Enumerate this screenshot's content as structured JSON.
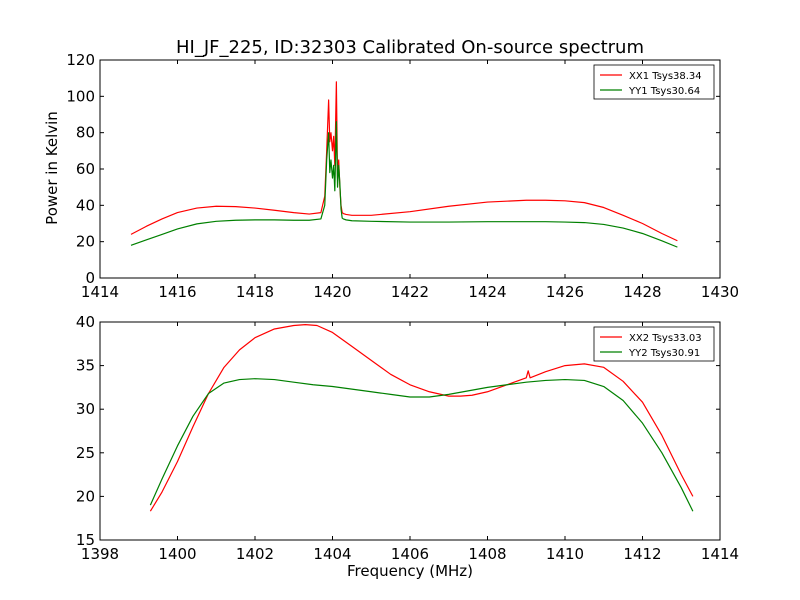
{
  "figure": {
    "title": "HI_JF_225, ID:32303 Calibrated On-source spectrum",
    "ylabel": "Power in Kelvin",
    "xlabel": "Frequency (MHz)"
  },
  "chart_data": [
    {
      "type": "line",
      "title": "HI_JF_225, ID:32303 Calibrated On-source spectrum",
      "xlabel": "",
      "ylabel": "Power in Kelvin",
      "xlim": [
        1414,
        1430
      ],
      "ylim": [
        0,
        120
      ],
      "xticks": [
        1414,
        1416,
        1418,
        1420,
        1422,
        1424,
        1426,
        1428,
        1430
      ],
      "yticks": [
        0,
        20,
        40,
        60,
        80,
        100,
        120
      ],
      "grid": false,
      "legend": "top-right",
      "series": [
        {
          "name": "XX1 Tsys38.34",
          "color": "#ff0000",
          "x": [
            1414.8,
            1415.2,
            1415.6,
            1416.0,
            1416.5,
            1417.0,
            1417.5,
            1418.0,
            1418.5,
            1419.0,
            1419.4,
            1419.7,
            1419.8,
            1419.85,
            1419.9,
            1419.93,
            1419.96,
            1420.0,
            1420.03,
            1420.06,
            1420.1,
            1420.13,
            1420.16,
            1420.19,
            1420.22,
            1420.25,
            1420.28,
            1420.35,
            1420.5,
            1421.0,
            1422.0,
            1423.0,
            1424.0,
            1425.0,
            1425.5,
            1426.0,
            1426.5,
            1427.0,
            1427.5,
            1428.0,
            1428.5,
            1428.9
          ],
          "values": [
            24,
            28.5,
            32.5,
            36,
            38.5,
            39.5,
            39.3,
            38.5,
            37.3,
            36,
            35.2,
            36,
            45,
            70,
            98,
            75,
            80,
            70,
            78,
            62,
            108,
            55,
            65,
            50,
            40,
            36,
            35.5,
            35,
            34.5,
            34.5,
            36.5,
            39.5,
            41.8,
            42.8,
            42.8,
            42.5,
            41.5,
            38.8,
            34.5,
            30,
            24.5,
            20.5
          ]
        },
        {
          "name": "YY1 Tsys30.64",
          "color": "#008000",
          "x": [
            1414.8,
            1415.2,
            1415.6,
            1416.0,
            1416.5,
            1417.0,
            1417.5,
            1418.0,
            1418.5,
            1419.0,
            1419.4,
            1419.7,
            1419.8,
            1419.85,
            1419.9,
            1419.93,
            1419.96,
            1420.0,
            1420.03,
            1420.06,
            1420.1,
            1420.13,
            1420.16,
            1420.19,
            1420.22,
            1420.25,
            1420.28,
            1420.35,
            1420.5,
            1421.0,
            1422.0,
            1423.0,
            1424.0,
            1425.0,
            1425.5,
            1426.0,
            1426.5,
            1427.0,
            1427.5,
            1428.0,
            1428.5,
            1428.9
          ],
          "values": [
            18,
            21,
            24,
            27,
            29.8,
            31.2,
            31.8,
            32,
            32,
            31.8,
            31.8,
            32.5,
            40,
            65,
            80,
            58,
            65,
            55,
            62,
            48,
            86,
            50,
            62,
            52,
            38,
            33,
            32.5,
            32,
            31.5,
            31.2,
            30.8,
            30.8,
            31,
            31,
            31,
            30.8,
            30.5,
            29.5,
            27.5,
            24.5,
            20.5,
            17
          ]
        }
      ]
    },
    {
      "type": "line",
      "title": "",
      "xlabel": "Frequency (MHz)",
      "ylabel": "",
      "xlim": [
        1398,
        1414
      ],
      "ylim": [
        15,
        40
      ],
      "xticks": [
        1398,
        1400,
        1402,
        1404,
        1406,
        1408,
        1410,
        1412,
        1414
      ],
      "yticks": [
        15,
        20,
        25,
        30,
        35,
        40
      ],
      "grid": false,
      "legend": "top-right",
      "series": [
        {
          "name": "XX2 Tsys33.03",
          "color": "#ff0000",
          "x": [
            1399.3,
            1399.6,
            1400.0,
            1400.4,
            1400.8,
            1401.2,
            1401.6,
            1402.0,
            1402.5,
            1403.0,
            1403.3,
            1403.6,
            1404.0,
            1404.5,
            1405.0,
            1405.5,
            1406.0,
            1406.5,
            1407.0,
            1407.3,
            1407.6,
            1408.0,
            1408.5,
            1409.0,
            1409.05,
            1409.1,
            1409.5,
            1410.0,
            1410.5,
            1411.0,
            1411.5,
            1412.0,
            1412.5,
            1413.0,
            1413.3
          ],
          "values": [
            18.3,
            20.5,
            24,
            28,
            31.8,
            34.8,
            36.8,
            38.2,
            39.2,
            39.6,
            39.7,
            39.6,
            38.8,
            37.2,
            35.6,
            34,
            32.8,
            32,
            31.5,
            31.5,
            31.6,
            32,
            32.8,
            33.6,
            34.4,
            33.6,
            34.3,
            35,
            35.2,
            34.8,
            33.2,
            30.8,
            27,
            22.5,
            20
          ]
        },
        {
          "name": "YY2 Tsys30.91",
          "color": "#008000",
          "x": [
            1399.3,
            1399.6,
            1400.0,
            1400.4,
            1400.8,
            1401.2,
            1401.6,
            1402.0,
            1402.5,
            1403.0,
            1403.5,
            1404.0,
            1404.5,
            1405.0,
            1405.5,
            1406.0,
            1406.5,
            1407.0,
            1407.5,
            1408.0,
            1408.5,
            1409.0,
            1409.5,
            1410.0,
            1410.5,
            1411.0,
            1411.5,
            1412.0,
            1412.5,
            1413.0,
            1413.3
          ],
          "values": [
            19,
            22,
            25.8,
            29.2,
            31.8,
            33.0,
            33.4,
            33.5,
            33.4,
            33.1,
            32.8,
            32.6,
            32.3,
            32.0,
            31.7,
            31.4,
            31.4,
            31.7,
            32.1,
            32.5,
            32.8,
            33.1,
            33.3,
            33.4,
            33.3,
            32.6,
            31.0,
            28.4,
            25.0,
            21.0,
            18.3
          ]
        }
      ]
    }
  ]
}
